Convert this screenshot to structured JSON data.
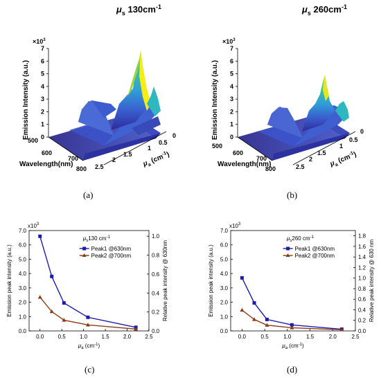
{
  "panels": {
    "a": {
      "label": "(a)",
      "title_mu": "μ",
      "title_sub": "s",
      "title_rest": " 130cm",
      "title_sup": "-1"
    },
    "b": {
      "label": "(b)",
      "title_mu": "μ",
      "title_sub": "s",
      "title_rest": " 260cm",
      "title_sup": "-1"
    },
    "c": {
      "label": "(c)"
    },
    "d": {
      "label": "(d)"
    }
  },
  "surface_axes": {
    "zlabel": "Emission Intensity (a.u.)",
    "zscale": "×10",
    "zscale_exp": "3",
    "zticks": [
      "0",
      "1",
      "2",
      "3",
      "4",
      "5",
      "6",
      "7"
    ],
    "wl_label": "Wavelength(nm)",
    "wl_ticks": [
      "500",
      "600",
      "700",
      "800"
    ],
    "mua_label": "μ",
    "mua_sub": "a",
    "mua_unit": " (cm",
    "mua_unit_sup": "-1",
    "mua_unit_end": ")",
    "mua_ticks": [
      "0",
      "0.5",
      "1",
      "1.5",
      "2",
      "2.5"
    ]
  },
  "colors": {
    "peak1": "#1b1bb0",
    "peak2": "#8b3a14",
    "surface_low": "#3e3aa8",
    "surface_high": "#f2ea1c"
  },
  "chart_data": [
    {
      "panel": "c",
      "type": "line",
      "legend_title_mu": "μ",
      "legend_title_sub": "s",
      "legend_title_rest": "130 cm",
      "legend_title_sup": "-1",
      "scale_label": "x10",
      "scale_exp": "3",
      "xlabel_mu": "μ",
      "xlabel_sub": "a",
      "xlabel_rest": " (cm",
      "xlabel_sup": "-1",
      "xlabel_end": ")",
      "ylabel": "Emission peak intensity (a.u.)",
      "y2label": "Relative peak intensity @ 630nm",
      "xlim": [
        -0.25,
        2.5
      ],
      "xticks": [
        "0.0",
        "0.5",
        "1.0",
        "1.5",
        "2.0",
        "2.5"
      ],
      "ylim": [
        0,
        7.0
      ],
      "yticks": [
        "0.0",
        "1.0",
        "2.0",
        "3.0",
        "4.0",
        "5.0",
        "6.0",
        "7.0"
      ],
      "y2lim": [
        0,
        1.06
      ],
      "y2ticks": [
        "0.0",
        "0.2",
        "0.4",
        "0.6",
        "0.8",
        "1.0"
      ],
      "x": [
        0.0,
        0.27,
        0.55,
        1.1,
        2.2
      ],
      "series": [
        {
          "name": "Peak1 @630nm",
          "marker": "square",
          "values": [
            6.6,
            3.8,
            1.95,
            0.95,
            0.25
          ]
        },
        {
          "name": "Peak2 @700nm",
          "marker": "triangle",
          "values": [
            2.35,
            1.35,
            0.75,
            0.42,
            0.13
          ]
        }
      ]
    },
    {
      "panel": "d",
      "type": "line",
      "legend_title_mu": "μ",
      "legend_title_sub": "s",
      "legend_title_rest": "260 cm",
      "legend_title_sup": "-1",
      "scale_label": "x10",
      "scale_exp": "3",
      "xlabel_mu": "μ",
      "xlabel_sub": "a",
      "xlabel_rest": " (cm",
      "xlabel_sup": "-1",
      "xlabel_end": ")",
      "ylabel": "Emission peak intensity (a.u.)",
      "y2label": "Relative peak intensity @ 630 nm",
      "xlim": [
        -0.25,
        2.5
      ],
      "xticks": [
        "0.0",
        "0.5",
        "1.0",
        "1.5",
        "2.0",
        "2.5"
      ],
      "ylim": [
        0,
        7.0
      ],
      "yticks": [
        "0.0",
        "1.0",
        "2.0",
        "3.0",
        "4.0",
        "5.0",
        "6.0",
        "7.0"
      ],
      "y2lim": [
        0,
        1.9
      ],
      "y2ticks": [
        "0.0",
        "0.2",
        "0.4",
        "0.6",
        "0.8",
        "1.0",
        "1.2",
        "1.4",
        "1.6",
        "1.8"
      ],
      "x": [
        0.0,
        0.27,
        0.55,
        1.1,
        2.2
      ],
      "series": [
        {
          "name": "Peak1 @630nm",
          "marker": "square",
          "values": [
            3.7,
            1.95,
            0.8,
            0.42,
            0.12
          ]
        },
        {
          "name": "Peak2 @700nm",
          "marker": "triangle",
          "values": [
            1.45,
            0.8,
            0.4,
            0.22,
            0.08
          ]
        }
      ]
    }
  ]
}
